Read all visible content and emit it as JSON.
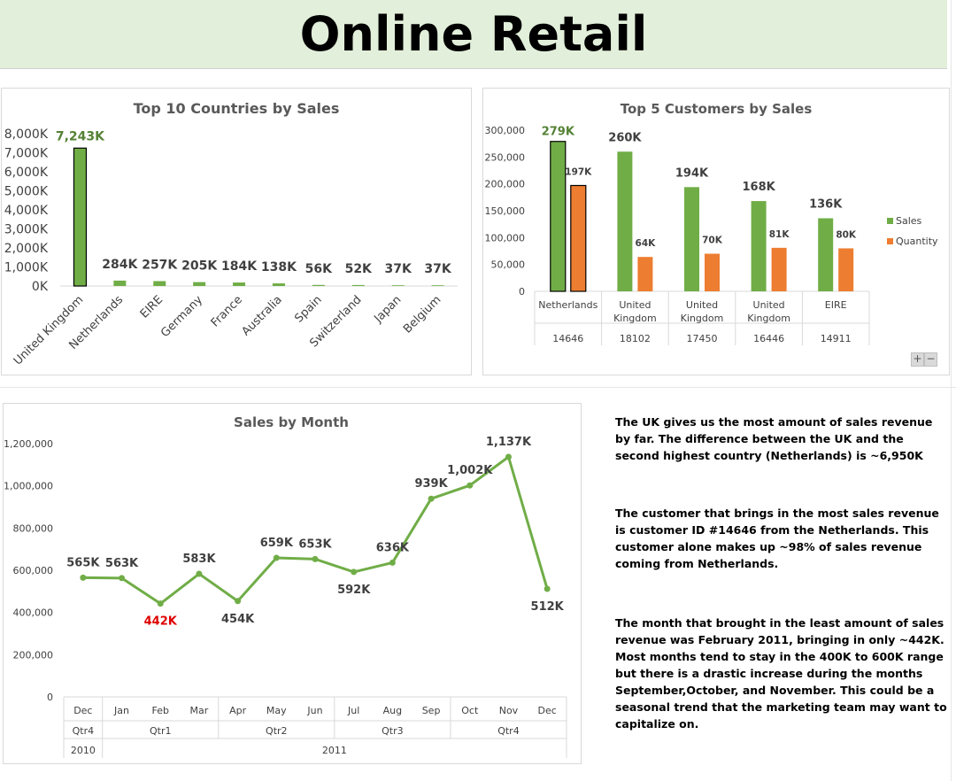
{
  "header": {
    "title": "Online Retail"
  },
  "colors": {
    "sales": "#70ad47",
    "quantity": "#ed7d31",
    "highlight": "#548235",
    "low": "#e00000",
    "banner": "#e2efda"
  },
  "chart_data": [
    {
      "id": "countries",
      "type": "bar",
      "title": "Top 10 Countries by Sales",
      "categories": [
        "United Kingdom",
        "Netherlands",
        "EIRE",
        "Germany",
        "France",
        "Australia",
        "Spain",
        "Switzerland",
        "Japan",
        "Belgium"
      ],
      "values": [
        7243,
        284,
        257,
        205,
        184,
        138,
        56,
        52,
        37,
        37
      ],
      "data_labels": [
        "7,243K",
        "284K",
        "257K",
        "205K",
        "184K",
        "138K",
        "56K",
        "52K",
        "37K",
        "37K"
      ],
      "y_ticks": [
        "0K",
        "1,000K",
        "2,000K",
        "3,000K",
        "4,000K",
        "5,000K",
        "6,000K",
        "7,000K",
        "8,000K"
      ],
      "ylim": [
        0,
        8000
      ],
      "grid": false
    },
    {
      "id": "customers",
      "type": "bar",
      "title": "Top 5 Customers by Sales",
      "categories": [
        {
          "country": "Netherlands",
          "id": "14646"
        },
        {
          "country": "United Kingdom",
          "id": "18102"
        },
        {
          "country": "United Kingdom",
          "id": "17450"
        },
        {
          "country": "United Kingdom",
          "id": "16446"
        },
        {
          "country": "EIRE",
          "id": "14911"
        }
      ],
      "series": [
        {
          "name": "Sales",
          "values": [
            279000,
            260000,
            194000,
            168000,
            136000
          ],
          "labels": [
            "279K",
            "260K",
            "194K",
            "168K",
            "136K"
          ]
        },
        {
          "name": "Quantity",
          "values": [
            197000,
            64000,
            70000,
            81000,
            80000
          ],
          "labels": [
            "197K",
            "64K",
            "70K",
            "81K",
            "80K"
          ]
        }
      ],
      "y_ticks": [
        "0",
        "50,000",
        "100,000",
        "150,000",
        "200,000",
        "250,000",
        "300,000"
      ],
      "ylim": [
        0,
        300000
      ],
      "legend": "right",
      "grid": false
    },
    {
      "id": "months",
      "type": "line",
      "title": "Sales by Month",
      "x": [
        "Dec",
        "Jan",
        "Feb",
        "Mar",
        "Apr",
        "May",
        "Jun",
        "Jul",
        "Aug",
        "Sep",
        "Oct",
        "Nov",
        "Dec"
      ],
      "values": [
        565,
        563,
        442,
        583,
        454,
        659,
        653,
        592,
        636,
        939,
        1002,
        1137,
        512
      ],
      "data_labels": [
        "565K",
        "563K",
        "442K",
        "583K",
        "454K",
        "659K",
        "653K",
        "592K",
        "636K",
        "939K",
        "1,002K",
        "1,137K",
        "512K"
      ],
      "quarters": [
        {
          "label": "Qtr4",
          "span": 1
        },
        {
          "label": "Qtr1",
          "span": 3
        },
        {
          "label": "Qtr2",
          "span": 3
        },
        {
          "label": "Qtr3",
          "span": 3
        },
        {
          "label": "Qtr4",
          "span": 3
        }
      ],
      "years": [
        {
          "label": "2010",
          "span": 1
        },
        {
          "label": "2011",
          "span": 12
        }
      ],
      "y_ticks": [
        "0",
        "200,000",
        "400,000",
        "600,000",
        "800,000",
        "1,000,000",
        "1,200,000"
      ],
      "ylim": [
        0,
        1200
      ],
      "grid": false
    }
  ],
  "insights": [
    "The UK gives us the most amount of sales revenue by far. The difference between the UK and the second highest country (Netherlands) is ~6,950K",
    "The customer that brings in the most sales revenue is customer ID #14646 from the Netherlands. This customer alone makes up ~98% of sales revenue coming from Netherlands.",
    "The month that brought in the least amount of sales revenue was February 2011, bringing in only ~442K. Most months tend to stay in the 400K to 600K range but there is a drastic increase during the months September,October, and November. This could be a seasonal trend that the marketing team may want to capitalize on."
  ],
  "controls": {
    "zoom_in": "+",
    "zoom_out": "−"
  }
}
